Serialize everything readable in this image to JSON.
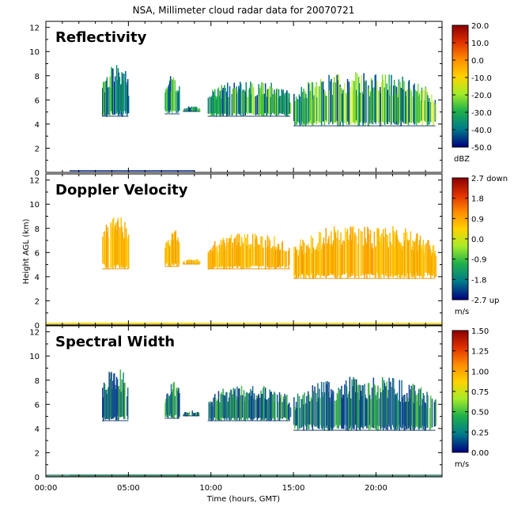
{
  "title": "NSA, Millimeter cloud radar data for 20070721",
  "chart_data": [
    {
      "type": "heatmap",
      "panel_label": "Reflectivity",
      "x_range_hours": [
        0,
        24
      ],
      "y_range_km": [
        0,
        12.5
      ],
      "y_ticks": [
        "0",
        "2",
        "4",
        "6",
        "8",
        "10",
        "12"
      ],
      "colorbar": {
        "ticks": [
          "20.0",
          "10.0",
          "0.0",
          "-10.0",
          "-20.0",
          "-30.0",
          "-40.0",
          "-50.0"
        ],
        "unit": "dBZ",
        "colors": [
          "#8b0000",
          "#e03000",
          "#ff8c00",
          "#ffd200",
          "#a6ec28",
          "#21b14a",
          "#007c8a",
          "#000080"
        ]
      }
    },
    {
      "type": "heatmap",
      "panel_label": "Doppler Velocity",
      "x_range_hours": [
        0,
        24
      ],
      "y_range_km": [
        0,
        12.5
      ],
      "y_ticks": [
        "0",
        "2",
        "4",
        "6",
        "8",
        "10",
        "12"
      ],
      "colorbar": {
        "ticks": [
          "2.7 down",
          "1.8",
          "0.9",
          "0.0",
          "-0.9",
          "-1.8",
          "-2.7 up"
        ],
        "unit": "m/s",
        "colors": [
          "#8b0000",
          "#e03000",
          "#ff8c00",
          "#ffd200",
          "#a6ec28",
          "#21b14a",
          "#007c8a",
          "#000080"
        ]
      }
    },
    {
      "type": "heatmap",
      "panel_label": "Spectral Width",
      "x_range_hours": [
        0,
        24
      ],
      "y_range_km": [
        0,
        12.5
      ],
      "y_ticks": [
        "0",
        "2",
        "4",
        "6",
        "8",
        "10",
        "12"
      ],
      "colorbar": {
        "ticks": [
          "1.50",
          "1.25",
          "1.00",
          "0.75",
          "0.50",
          "0.25",
          "0.00"
        ],
        "unit": "m/s",
        "colors": [
          "#8b0000",
          "#e03000",
          "#ff8c00",
          "#ffd200",
          "#a6ec28",
          "#21b14a",
          "#007c8a",
          "#000080"
        ]
      }
    }
  ],
  "x_axis": {
    "ticks": [
      {
        "label": "00:00",
        "hour": 0
      },
      {
        "label": "05:00",
        "hour": 5
      },
      {
        "label": "10:00",
        "hour": 10
      },
      {
        "label": "15:00",
        "hour": 15
      },
      {
        "label": "20:00",
        "hour": 20
      }
    ],
    "title": "Time (hours, GMT)"
  },
  "y_axis_title": "Height AGL (km)",
  "cloud_segments": [
    {
      "t0": 3.4,
      "t1": 5.0,
      "base": 4.6,
      "top": 9.0
    },
    {
      "t0": 7.2,
      "t1": 8.1,
      "base": 4.8,
      "top": 8.0
    },
    {
      "t0": 8.3,
      "t1": 9.3,
      "base": 5.0,
      "top": 5.5
    },
    {
      "t0": 9.8,
      "t1": 14.8,
      "base": 4.6,
      "top": 7.6
    },
    {
      "t0": 15.0,
      "t1": 23.6,
      "base": 3.8,
      "top": 8.3
    }
  ]
}
